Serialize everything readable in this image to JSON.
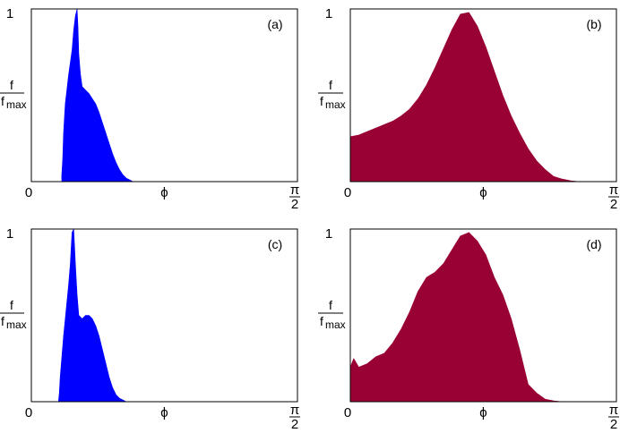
{
  "chart_data": [
    {
      "type": "area",
      "panel_label": "(a)",
      "color": "#0000ff",
      "ylabel": {
        "num": "f",
        "den": "f",
        "den_sub": "max"
      },
      "y_tick_top": "1",
      "x_ticks": {
        "left": "0",
        "mid": "ϕ",
        "right_num": "π",
        "right_den": "2"
      },
      "xlim": [
        0,
        1.5708
      ],
      "ylim": [
        0,
        1
      ],
      "x": [
        0.0,
        0.18,
        0.179,
        0.185,
        0.19,
        0.2,
        0.22,
        0.24,
        0.25,
        0.26,
        0.27,
        0.275,
        0.28,
        0.29,
        0.3,
        0.32,
        0.34,
        0.36,
        0.38,
        0.4,
        0.42,
        0.44,
        0.46,
        0.48,
        0.5,
        0.52,
        0.54,
        0.56,
        0.58,
        0.6,
        1.5708
      ],
      "values": [
        0.0,
        0.0,
        0.03,
        0.13,
        0.28,
        0.45,
        0.62,
        0.76,
        0.88,
        0.96,
        1.0,
        0.9,
        0.74,
        0.62,
        0.55,
        0.53,
        0.51,
        0.48,
        0.45,
        0.4,
        0.34,
        0.28,
        0.22,
        0.16,
        0.11,
        0.07,
        0.04,
        0.02,
        0.01,
        0.0,
        0.0
      ]
    },
    {
      "type": "area",
      "panel_label": "(b)",
      "color": "#990033",
      "ylabel": {
        "num": "f",
        "den": "f",
        "den_sub": "max"
      },
      "y_tick_top": "1",
      "x_ticks": {
        "left": "0",
        "mid": "ϕ",
        "right_num": "π",
        "right_den": "2"
      },
      "xlim": [
        0,
        1.5708
      ],
      "ylim": [
        0,
        1
      ],
      "x": [
        0.0,
        0.0,
        0.05,
        0.1,
        0.15,
        0.2,
        0.25,
        0.3,
        0.35,
        0.4,
        0.45,
        0.5,
        0.55,
        0.6,
        0.65,
        0.7,
        0.75,
        0.8,
        0.85,
        0.9,
        0.95,
        1.0,
        1.05,
        1.1,
        1.15,
        1.2,
        1.25,
        1.3,
        1.35,
        1.5708
      ],
      "values": [
        0.0,
        0.26,
        0.27,
        0.29,
        0.31,
        0.33,
        0.35,
        0.38,
        0.42,
        0.48,
        0.56,
        0.66,
        0.77,
        0.88,
        0.97,
        0.98,
        0.9,
        0.78,
        0.64,
        0.5,
        0.38,
        0.28,
        0.19,
        0.12,
        0.07,
        0.03,
        0.015,
        0.005,
        0.0,
        0.0
      ]
    },
    {
      "type": "area",
      "panel_label": "(c)",
      "color": "#0000ff",
      "ylabel": {
        "num": "f",
        "den": "f",
        "den_sub": "max"
      },
      "y_tick_top": "1",
      "x_ticks": {
        "left": "0",
        "mid": "ϕ",
        "right_num": "π",
        "right_den": "2"
      },
      "xlim": [
        0,
        1.5708
      ],
      "ylim": [
        0,
        1
      ],
      "x": [
        0.0,
        0.16,
        0.165,
        0.17,
        0.18,
        0.19,
        0.2,
        0.21,
        0.22,
        0.23,
        0.24,
        0.25,
        0.26,
        0.27,
        0.28,
        0.3,
        0.32,
        0.34,
        0.36,
        0.38,
        0.4,
        0.42,
        0.44,
        0.46,
        0.48,
        0.5,
        0.52,
        0.54,
        0.56,
        1.5708
      ],
      "values": [
        0.0,
        0.0,
        0.05,
        0.14,
        0.26,
        0.38,
        0.48,
        0.58,
        0.68,
        0.8,
        0.98,
        1.0,
        0.8,
        0.62,
        0.5,
        0.48,
        0.5,
        0.5,
        0.48,
        0.44,
        0.38,
        0.3,
        0.22,
        0.14,
        0.08,
        0.04,
        0.02,
        0.01,
        0.0,
        0.0
      ]
    },
    {
      "type": "area",
      "panel_label": "(d)",
      "color": "#990033",
      "ylabel": {
        "num": "f",
        "den": "f",
        "den_sub": "max"
      },
      "y_tick_top": "1",
      "x_ticks": {
        "left": "0",
        "mid": "ϕ",
        "right_num": "π",
        "right_den": "2"
      },
      "xlim": [
        0,
        1.5708
      ],
      "ylim": [
        0,
        1
      ],
      "x": [
        0.0,
        0.0,
        0.02,
        0.05,
        0.1,
        0.15,
        0.2,
        0.25,
        0.3,
        0.35,
        0.4,
        0.45,
        0.5,
        0.55,
        0.6,
        0.65,
        0.7,
        0.75,
        0.8,
        0.85,
        0.9,
        0.95,
        1.0,
        1.05,
        1.1,
        1.15,
        1.2,
        1.25,
        1.35,
        1.45,
        1.5708
      ],
      "values": [
        0.0,
        0.2,
        0.25,
        0.2,
        0.22,
        0.26,
        0.28,
        0.34,
        0.42,
        0.52,
        0.64,
        0.72,
        0.75,
        0.8,
        0.88,
        0.96,
        0.98,
        0.93,
        0.85,
        0.72,
        0.62,
        0.48,
        0.3,
        0.1,
        0.05,
        0.015,
        0.005,
        0.0,
        0.0,
        0.0,
        0.0
      ]
    }
  ]
}
